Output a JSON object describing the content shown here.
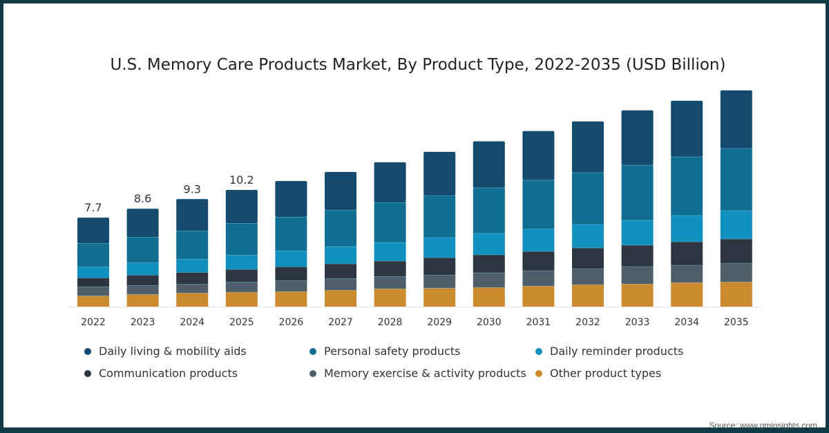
{
  "chart_data": {
    "type": "bar",
    "stacked": true,
    "title": "U.S. Memory Care Products Market, By Product Type, 2022-2035 (USD Billion)",
    "xlabel": "",
    "ylabel": "",
    "ylim": [
      0,
      19
    ],
    "grid": false,
    "legend_position": "bottom",
    "categories": [
      "2022",
      "2023",
      "2024",
      "2025",
      "2026",
      "2027",
      "2028",
      "2029",
      "2030",
      "2031",
      "2032",
      "2033",
      "2034",
      "2035"
    ],
    "total_labels": {
      "2022": "7.7",
      "2023": "8.6",
      "2024": "9.3",
      "2025": "10.2"
    },
    "series": [
      {
        "name": "Other product types",
        "color": "#cc8a2f",
        "values": [
          0.96,
          1.08,
          1.2,
          1.27,
          1.33,
          1.45,
          1.57,
          1.63,
          1.69,
          1.81,
          1.93,
          1.99,
          2.11,
          2.17
        ]
      },
      {
        "name": "Memory exercise & activity products",
        "color": "#4f5e6b",
        "values": [
          0.78,
          0.78,
          0.78,
          0.9,
          0.96,
          1.02,
          1.08,
          1.14,
          1.27,
          1.33,
          1.39,
          1.51,
          1.51,
          1.63
        ]
      },
      {
        "name": "Communication products",
        "color": "#2d3640",
        "values": [
          0.78,
          0.9,
          1.02,
          1.08,
          1.2,
          1.27,
          1.33,
          1.51,
          1.57,
          1.69,
          1.81,
          1.87,
          2.05,
          2.11
        ]
      },
      {
        "name": "Daily reminder products",
        "color": "#1190bd",
        "values": [
          0.96,
          1.08,
          1.14,
          1.27,
          1.39,
          1.51,
          1.63,
          1.75,
          1.87,
          1.93,
          2.05,
          2.17,
          2.29,
          2.47
        ]
      },
      {
        "name": "Personal safety products",
        "color": "#126e91",
        "values": [
          2.05,
          2.23,
          2.47,
          2.77,
          2.95,
          3.19,
          3.49,
          3.67,
          3.98,
          4.28,
          4.52,
          4.82,
          5.12,
          5.42
        ]
      },
      {
        "name": "Daily living & mobility aids",
        "color": "#134a6e",
        "values": [
          2.23,
          2.47,
          2.77,
          2.89,
          3.13,
          3.31,
          3.49,
          3.8,
          4.04,
          4.28,
          4.46,
          4.76,
          4.88,
          5.06
        ]
      }
    ],
    "legend_order": [
      "Daily living & mobility aids",
      "Personal safety products",
      "Daily reminder products",
      "Communication products",
      "Memory exercise & activity products",
      "Other product types"
    ]
  },
  "source": "Source: www.gminsights.com"
}
